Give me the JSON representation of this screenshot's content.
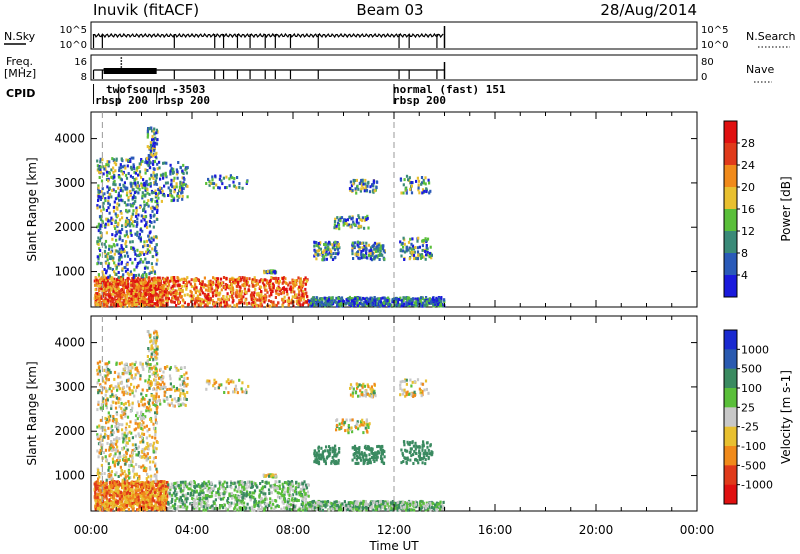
{
  "header": {
    "site": "Inuvik (fitACF)",
    "beam": "Beam 03",
    "date": "28/Aug/2014"
  },
  "top_panels": {
    "nsky_label": "N.Sky",
    "nsky_ticks": [
      "10^5",
      "10^0"
    ],
    "nsearch_label": "N.Search",
    "nsearch_ticks": [
      "10^5",
      "10^0"
    ],
    "freq_label": "Freq.",
    "freq_unit": "[MHz]",
    "freq_ticks": [
      "16",
      "8"
    ],
    "nave_label": "Nave",
    "nave_ticks": [
      "80",
      "0"
    ],
    "cpid_label": "CPID",
    "cpid_entries": [
      {
        "time": 0.15,
        "label": "rbsp 200"
      },
      {
        "time": 1.3,
        "label": "twofsound -3503"
      },
      {
        "time": 2.7,
        "label": "rbsp 200"
      },
      {
        "time": 12.0,
        "label": "normal (fast) 151"
      },
      {
        "time": 12.0,
        "label": "rbsp 200"
      }
    ]
  },
  "chart_data": [
    {
      "type": "heatmap",
      "name": "power-panel",
      "xlabel": "",
      "ylabel": "Slant Range [km]",
      "xlim": [
        0,
        24
      ],
      "ylim": [
        200,
        4600
      ],
      "yticks": [
        "1000",
        "2000",
        "3000",
        "4000"
      ],
      "colorbar": {
        "label": "Power [dB]",
        "ticks": [
          "4",
          "8",
          "12",
          "16",
          "20",
          "24",
          "28"
        ],
        "colors": [
          "#1a1adc",
          "#2a5ab8",
          "#3a8a78",
          "#5abf3a",
          "#e8c030",
          "#f08a1a",
          "#e03a1a",
          "#e01010"
        ]
      },
      "data_extent_hours": [
        0,
        14.0
      ]
    },
    {
      "type": "heatmap",
      "name": "velocity-panel",
      "xlabel": "Time UT",
      "ylabel": "Slant Range [km]",
      "xlim": [
        0,
        24
      ],
      "ylim": [
        200,
        4600
      ],
      "yticks": [
        "1000",
        "2000",
        "3000",
        "4000"
      ],
      "xticks": [
        "00:00",
        "04:00",
        "08:00",
        "12:00",
        "16:00",
        "20:00",
        "00:00"
      ],
      "colorbar": {
        "label": "Velocity [m s-1]",
        "ticks": [
          "1000",
          "500",
          "100",
          "25",
          "-25",
          "-100",
          "-500",
          "-1000"
        ],
        "colors": [
          "#1a2ad0",
          "#2a5ab0",
          "#3a8a60",
          "#5abf3a",
          "#c8c8c8",
          "#e8c030",
          "#f08a1a",
          "#e03a1a",
          "#e01010"
        ]
      },
      "data_extent_hours": [
        0,
        14.0
      ]
    }
  ]
}
